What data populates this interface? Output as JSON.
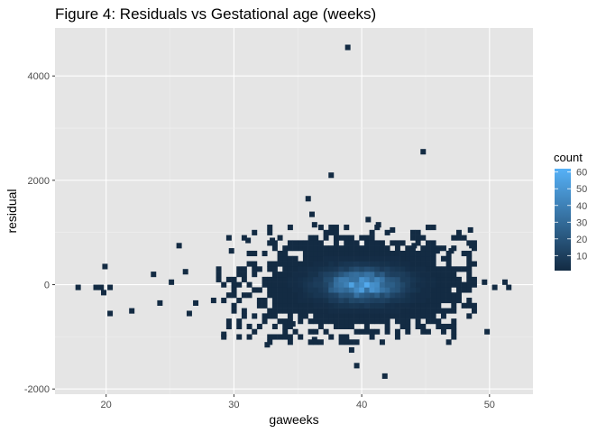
{
  "chart_data": {
    "type": "heatmap",
    "subtype": "2d-bin-count",
    "title": "Figure 4: Residuals vs Gestational age (weeks)",
    "xlabel": "gaweeks",
    "ylabel": "residual",
    "xlim": [
      16,
      53.4
    ],
    "ylim": [
      -2100,
      4920
    ],
    "x_ticks": [
      20,
      30,
      40,
      50
    ],
    "y_ticks": [
      -2000,
      0,
      2000,
      4000
    ],
    "grid": true,
    "legend": {
      "title": "count",
      "placement": "right",
      "ticks": [
        10,
        20,
        30,
        40,
        50,
        60
      ],
      "range": [
        1,
        62
      ],
      "color_low": "#132b43",
      "color_high": "#56b1f7"
    },
    "colors": {
      "panel_background": "#e5e5e5",
      "grid_major": "#ffffff",
      "grid_minor": "#f0f0f0"
    },
    "bin_width": {
      "x": 0.4,
      "y": 100
    },
    "outlier_bins": [
      {
        "x": 17.8,
        "y": -50,
        "count": 1
      },
      {
        "x": 19.2,
        "y": -50,
        "count": 1
      },
      {
        "x": 19.6,
        "y": -50,
        "count": 1
      },
      {
        "x": 19.8,
        "y": -150,
        "count": 1
      },
      {
        "x": 19.9,
        "y": 350,
        "count": 1
      },
      {
        "x": 20.3,
        "y": -50,
        "count": 1
      },
      {
        "x": 20.3,
        "y": -550,
        "count": 1
      },
      {
        "x": 22.0,
        "y": -500,
        "count": 1
      },
      {
        "x": 23.7,
        "y": 200,
        "count": 1
      },
      {
        "x": 24.2,
        "y": -350,
        "count": 1
      },
      {
        "x": 25.1,
        "y": 50,
        "count": 1
      },
      {
        "x": 25.7,
        "y": 750,
        "count": 1
      },
      {
        "x": 26.2,
        "y": 250,
        "count": 1
      },
      {
        "x": 26.5,
        "y": -550,
        "count": 1
      },
      {
        "x": 27.0,
        "y": -350,
        "count": 1
      },
      {
        "x": 29.2,
        "y": -950,
        "count": 1
      },
      {
        "x": 29.8,
        "y": 650,
        "count": 1
      },
      {
        "x": 31.1,
        "y": 850,
        "count": 1
      },
      {
        "x": 32.6,
        "y": -1150,
        "count": 1
      },
      {
        "x": 33.0,
        "y": 850,
        "count": 1
      },
      {
        "x": 34.6,
        "y": -750,
        "count": 1
      },
      {
        "x": 35.8,
        "y": 1650,
        "count": 1
      },
      {
        "x": 36.1,
        "y": 1350,
        "count": 1
      },
      {
        "x": 36.3,
        "y": 1150,
        "count": 1
      },
      {
        "x": 36.3,
        "y": -1050,
        "count": 1
      },
      {
        "x": 37.6,
        "y": 2100,
        "count": 1
      },
      {
        "x": 38.8,
        "y": -1050,
        "count": 1
      },
      {
        "x": 38.9,
        "y": 4550,
        "count": 1
      },
      {
        "x": 39.2,
        "y": -1250,
        "count": 1
      },
      {
        "x": 39.6,
        "y": -1550,
        "count": 1
      },
      {
        "x": 40.5,
        "y": 1250,
        "count": 1
      },
      {
        "x": 41.3,
        "y": 1150,
        "count": 1
      },
      {
        "x": 41.8,
        "y": -1750,
        "count": 1
      },
      {
        "x": 42.4,
        "y": 1050,
        "count": 1
      },
      {
        "x": 44.1,
        "y": 750,
        "count": 1
      },
      {
        "x": 44.8,
        "y": 2550,
        "count": 1
      },
      {
        "x": 45.9,
        "y": 650,
        "count": 1
      },
      {
        "x": 47.0,
        "y": 650,
        "count": 1
      },
      {
        "x": 48.5,
        "y": 1050,
        "count": 1
      },
      {
        "x": 48.6,
        "y": 750,
        "count": 1
      },
      {
        "x": 49.6,
        "y": 50,
        "count": 1
      },
      {
        "x": 49.8,
        "y": -900,
        "count": 1
      },
      {
        "x": 50.4,
        "y": -50,
        "count": 1
      },
      {
        "x": 51.2,
        "y": 50,
        "count": 1
      },
      {
        "x": 51.5,
        "y": -50,
        "count": 1
      }
    ],
    "dense_region": {
      "center_x": 40.0,
      "center_y": 0,
      "peak_count": 62,
      "x_extent": [
        28,
        49
      ],
      "y_extent": [
        -1100,
        1100
      ]
    }
  }
}
